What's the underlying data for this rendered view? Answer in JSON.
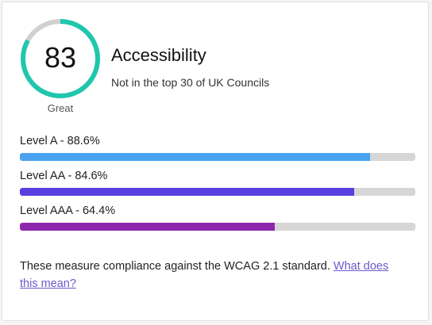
{
  "score": {
    "value": "83",
    "fraction": 0.83,
    "rating": "Great",
    "ring_color": "#1fc7ad",
    "track_color": "#d0d0d0"
  },
  "header": {
    "title": "Accessibility",
    "subtitle": "Not in the top 30 of UK Councils"
  },
  "levels": [
    {
      "label": "Level A - 88.6%",
      "percent": 88.6,
      "color": "#4aa3f0"
    },
    {
      "label": "Level AA - 84.6%",
      "percent": 84.6,
      "color": "#5a3fe0"
    },
    {
      "label": "Level AAA - 64.4%",
      "percent": 64.4,
      "color": "#8e27ad"
    }
  ],
  "footer": {
    "text": "These measure compliance against the WCAG 2.1 standard. ",
    "link_text": "What does this mean?"
  }
}
